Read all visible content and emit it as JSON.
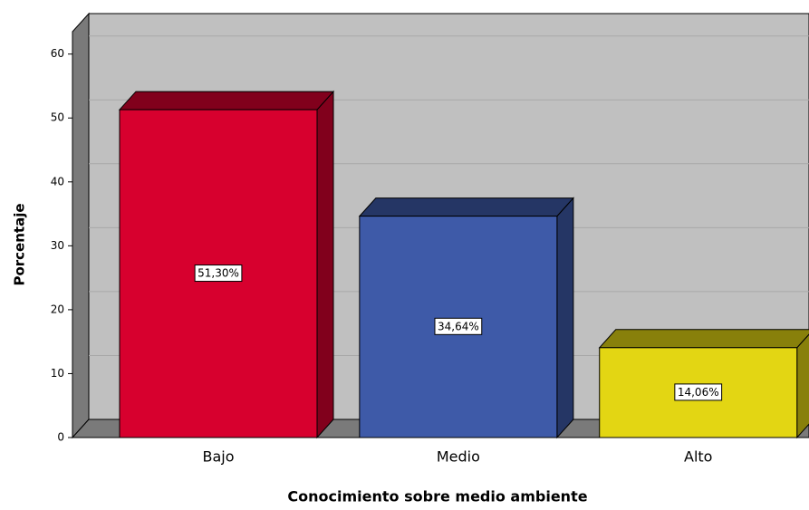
{
  "chart_data": {
    "type": "bar",
    "x_label": "Conocimiento sobre medio ambiente",
    "y_label": "Porcentaje",
    "categories": [
      "Bajo",
      "Medio",
      "Alto"
    ],
    "values": [
      51.3,
      34.64,
      14.06
    ],
    "value_labels": [
      "51,30%",
      "34,64%",
      "14,06%"
    ],
    "colors": [
      "#d7002e",
      "#3e5aa8",
      "#e3d613"
    ],
    "ylim": [
      0,
      63.5
    ],
    "yticks": [
      0,
      10,
      20,
      30,
      40,
      50,
      60
    ],
    "grid": true
  }
}
